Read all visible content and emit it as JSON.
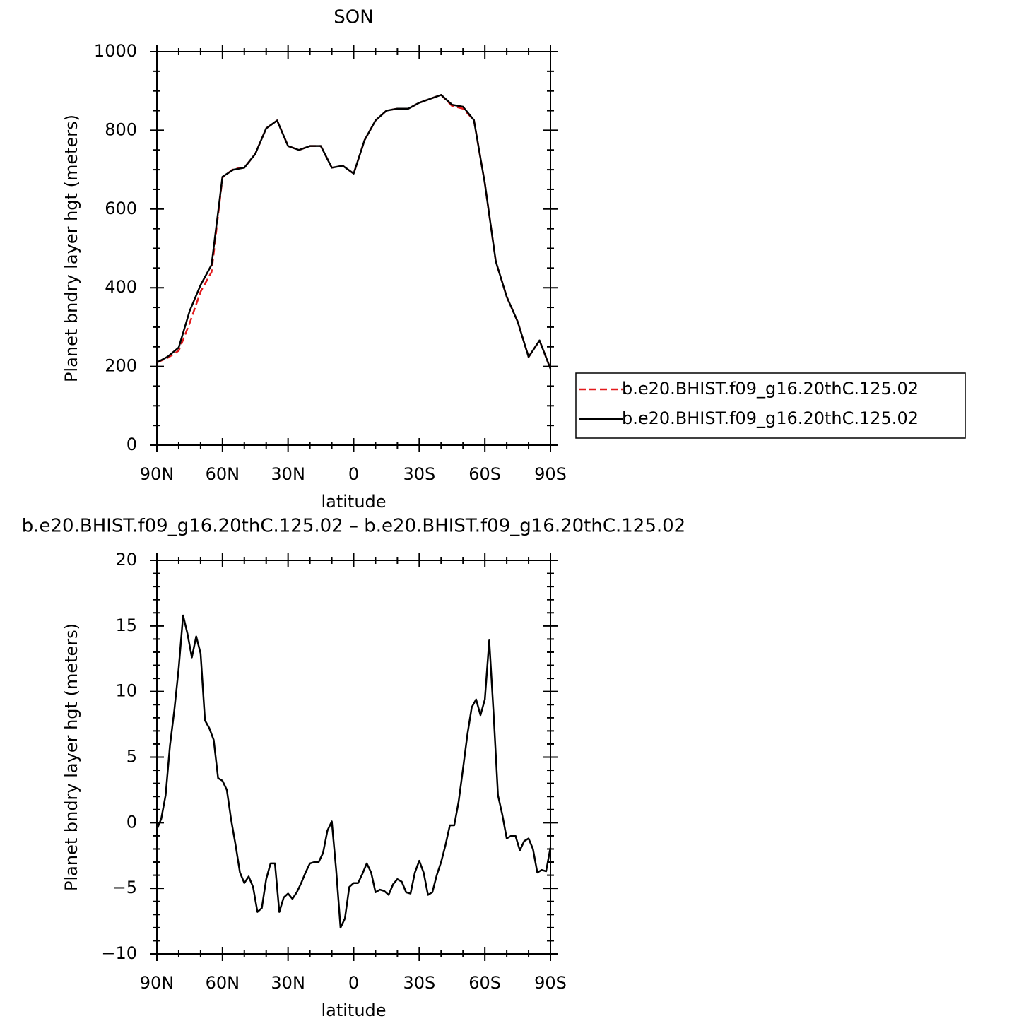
{
  "chart_data": [
    {
      "type": "line",
      "title": "SON",
      "xlabel": "latitude",
      "ylabel": "Planet bndry layer hgt (meters)",
      "x": [
        90,
        85,
        80,
        75,
        70,
        65,
        60,
        55,
        50,
        45,
        40,
        35,
        30,
        25,
        20,
        15,
        10,
        5,
        0,
        -5,
        -10,
        -15,
        -20,
        -25,
        -30,
        -35,
        -40,
        -45,
        -50,
        -55,
        -60,
        -65,
        -70,
        -75,
        -80,
        -85,
        -90
      ],
      "series": [
        {
          "name": "b.e20.BHIST.f09_g16.20thC.125.02",
          "color": "#e31a1c",
          "linestyle": "dashed",
          "values": [
            210,
            222,
            240,
            310,
            390,
            440,
            680,
            702,
            705,
            740,
            805,
            825,
            760,
            750,
            760,
            760,
            705,
            710,
            690,
            775,
            825,
            850,
            855,
            855,
            870,
            880,
            890,
            862,
            855,
            826,
            665,
            467,
            377,
            314,
            224,
            266,
            194
          ]
        },
        {
          "name": "b.e20.BHIST.f09_g16.20thC.125.02",
          "color": "#000000",
          "linestyle": "solid",
          "values": [
            210,
            225,
            248,
            341,
            407,
            458,
            682,
            700,
            705,
            740,
            805,
            825,
            760,
            750,
            760,
            760,
            705,
            710,
            690,
            775,
            825,
            850,
            855,
            855,
            870,
            880,
            890,
            865,
            860,
            826,
            665,
            467,
            377,
            314,
            224,
            266,
            194
          ]
        }
      ],
      "xlim": [
        90,
        -90
      ],
      "ylim": [
        0,
        1000
      ],
      "xticks": [
        {
          "value": 90,
          "label": "90N"
        },
        {
          "value": 60,
          "label": "60N"
        },
        {
          "value": 30,
          "label": "30N"
        },
        0,
        {
          "value": -30,
          "label": "30S"
        },
        {
          "value": -60,
          "label": "60S"
        },
        {
          "value": -90,
          "label": "90S"
        }
      ],
      "yticks": [
        0,
        200,
        400,
        600,
        800,
        1000
      ],
      "legend": "right"
    },
    {
      "type": "line",
      "title": "b.e20.BHIST.f09_g16.20thC.125.02 – b.e20.BHIST.f09_g16.20thC.125.02",
      "xlabel": "latitude",
      "ylabel": "Planet bndry layer hgt (meters)",
      "x": [
        90,
        88,
        86,
        84,
        82,
        80,
        78,
        76,
        74,
        72,
        70,
        68,
        66,
        64,
        62,
        60,
        58,
        56,
        54,
        52,
        50,
        48,
        46,
        44,
        42,
        40,
        38,
        36,
        34,
        32,
        30,
        28,
        26,
        24,
        22,
        20,
        18,
        16,
        14,
        12,
        10,
        8,
        6,
        4,
        2,
        0,
        -2,
        -4,
        -6,
        -8,
        -10,
        -12,
        -14,
        -16,
        -18,
        -20,
        -22,
        -24,
        -26,
        -28,
        -30,
        -32,
        -34,
        -36,
        -38,
        -40,
        -42,
        -44,
        -46,
        -48,
        -50,
        -52,
        -54,
        -56,
        -58,
        -60,
        -62,
        -64,
        -66,
        -68,
        -70,
        -72,
        -74,
        -76,
        -78,
        -80,
        -82,
        -84,
        -86,
        -88,
        -90
      ],
      "series": [
        {
          "color": "#000000",
          "linestyle": "solid",
          "values": [
            -0.5,
            0.3,
            2.1,
            5.9,
            8.6,
            11.8,
            15.8,
            14.4,
            12.6,
            14.2,
            12.9,
            7.8,
            7.2,
            6.3,
            3.4,
            3.2,
            2.5,
            0.2,
            -1.7,
            -3.8,
            -4.6,
            -4.1,
            -4.9,
            -6.8,
            -6.5,
            -4.3,
            -3.1,
            -3.1,
            -6.8,
            -5.7,
            -5.4,
            -5.8,
            -5.3,
            -4.6,
            -3.8,
            -3.1,
            -3.0,
            -3.0,
            -2.3,
            -0.6,
            0.1,
            -3.6,
            -8.0,
            -7.3,
            -4.9,
            -4.6,
            -4.6,
            -3.9,
            -3.1,
            -3.8,
            -5.3,
            -5.1,
            -5.2,
            -5.5,
            -4.7,
            -4.3,
            -4.5,
            -5.3,
            -5.4,
            -3.8,
            -2.9,
            -3.8,
            -5.5,
            -5.3,
            -4.0,
            -3.0,
            -1.7,
            -0.2,
            -0.2,
            1.6,
            4.1,
            6.7,
            8.8,
            9.4,
            8.2,
            9.4,
            13.9,
            8.3,
            2.1,
            0.6,
            -1.2,
            -1.0,
            -1.0,
            -2.1,
            -1.4,
            -1.2,
            -2.0,
            -3.8,
            -3.6,
            -3.7,
            -1.9
          ]
        }
      ],
      "xlim": [
        90,
        -90
      ],
      "ylim": [
        -10,
        20
      ],
      "xticks": [
        {
          "value": 90,
          "label": "90N"
        },
        {
          "value": 60,
          "label": "60N"
        },
        {
          "value": 30,
          "label": "30N"
        },
        0,
        {
          "value": -30,
          "label": "30S"
        },
        {
          "value": -60,
          "label": "60S"
        },
        {
          "value": -90,
          "label": "90S"
        }
      ],
      "yticks": [
        {
          "value": -10,
          "label": "−10"
        },
        {
          "value": -5,
          "label": "−5"
        },
        0,
        5,
        10,
        15,
        20
      ]
    }
  ]
}
